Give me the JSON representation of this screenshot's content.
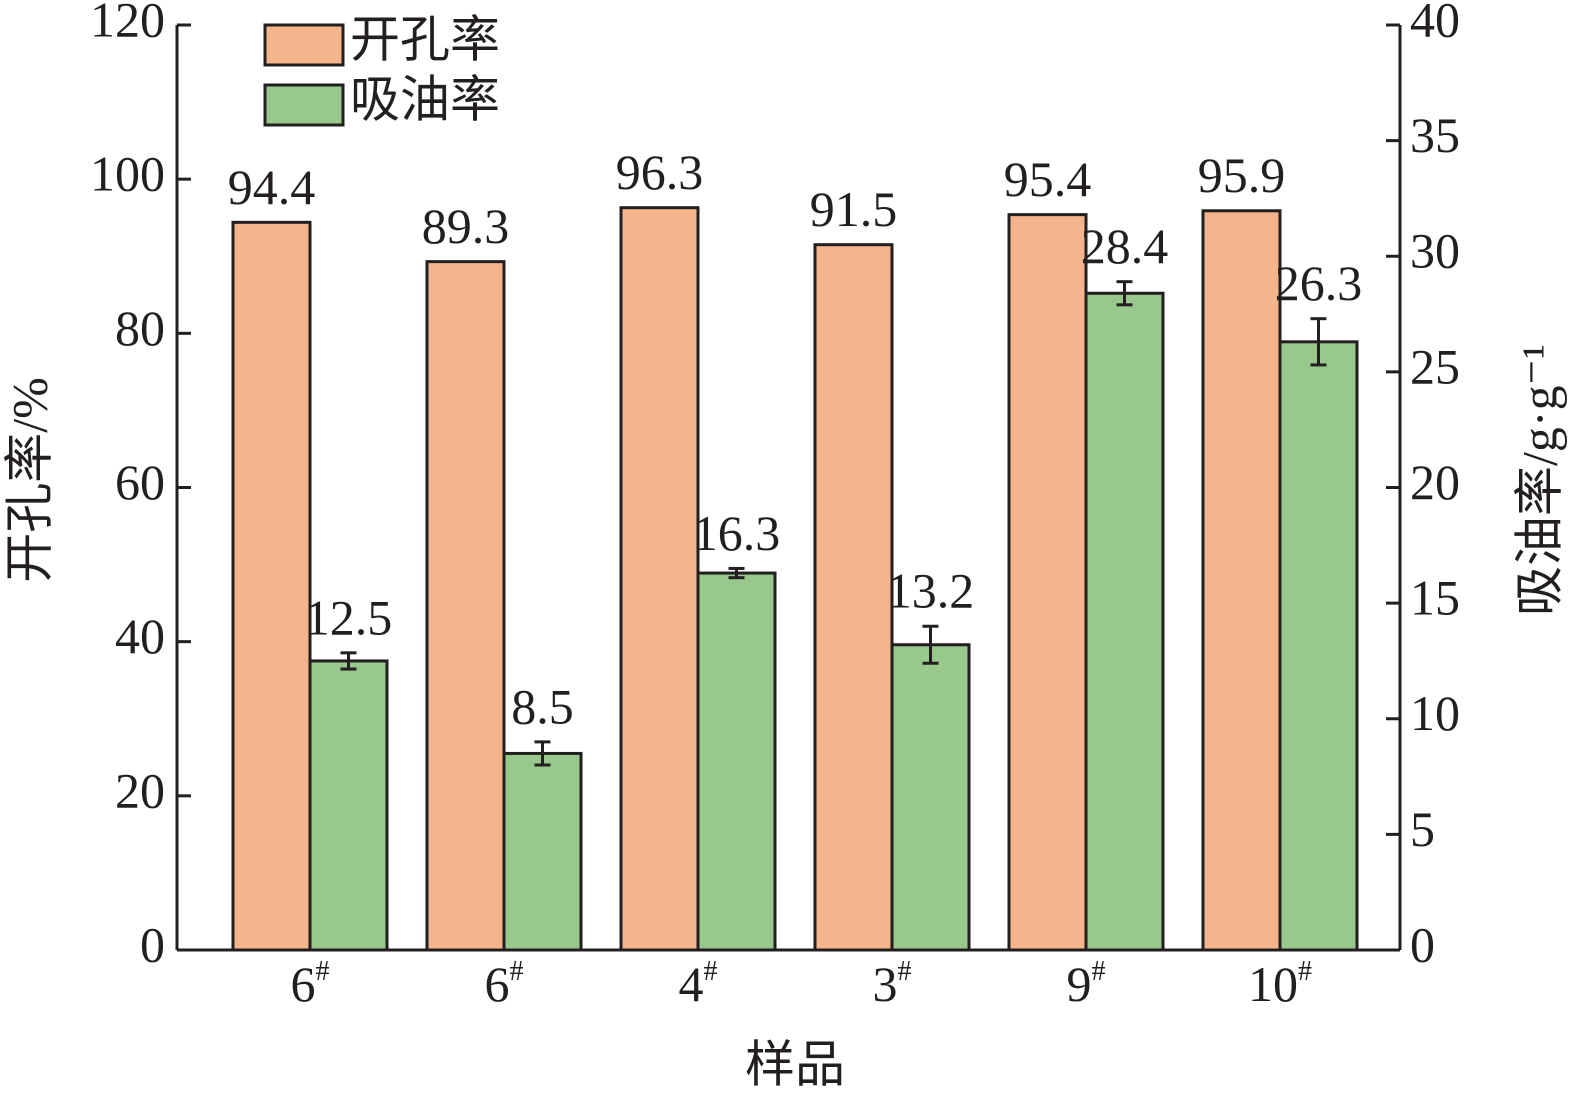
{
  "chart_data": {
    "type": "bar",
    "x_label": "样品",
    "y_label": "开孔率/%",
    "y2_label": "吸油率/g·g⁻¹",
    "categories": [
      "6#",
      "6#",
      "4#",
      "3#",
      "9#",
      "10#"
    ],
    "series": [
      {
        "name": "开孔率",
        "color": "#f4b48c",
        "values": [
          94.4,
          89.3,
          96.3,
          91.5,
          95.4,
          95.9
        ]
      },
      {
        "name": "吸油率",
        "color": "#98c88c",
        "axis": "y2",
        "values": [
          12.5,
          8.5,
          16.3,
          13.2,
          28.4,
          26.3
        ],
        "errors": [
          0.35,
          0.5,
          0.2,
          0.8,
          0.5,
          1.0
        ]
      }
    ],
    "ylim": [
      0,
      120
    ],
    "yticks": [
      0,
      20,
      40,
      60,
      80,
      100,
      120
    ],
    "y2lim": [
      0,
      40
    ],
    "y2ticks": [
      0,
      5,
      10,
      15,
      20,
      25,
      30,
      35,
      40
    ],
    "legend": "upper-left",
    "grid": false
  }
}
